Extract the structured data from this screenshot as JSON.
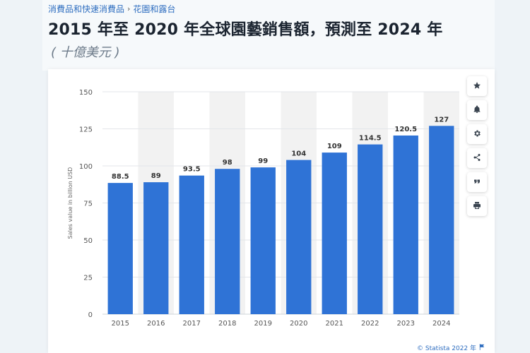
{
  "breadcrumb": [
    "消費品和快速消費品",
    "花園和露台"
  ],
  "breadcrumb_separator": "›",
  "title": "2015 年至 2020 年全球園藝銷售額，預測至 2024 年",
  "subtitle": "( 十億美元 )",
  "toolbar": [
    {
      "name": "star-icon"
    },
    {
      "name": "bell-icon"
    },
    {
      "name": "gear-icon"
    },
    {
      "name": "share-icon"
    },
    {
      "name": "quote-icon"
    },
    {
      "name": "print-icon"
    }
  ],
  "credit": {
    "text": "© Statista 2022 年",
    "flag_icon": "flag-icon"
  },
  "colors": {
    "bar": "#2f73d6",
    "grid": "#e3e6ea",
    "band": "#f2f2f2",
    "axis_text": "#555555",
    "label": "#333333"
  },
  "chart_data": {
    "type": "bar",
    "title": "",
    "xlabel": "",
    "ylabel": "Sales value in billion USD",
    "categories": [
      "2015",
      "2016",
      "2017",
      "2018",
      "2019",
      "2020",
      "2021",
      "2022",
      "2023",
      "2024"
    ],
    "values": [
      88.5,
      89,
      93.5,
      98,
      99,
      104,
      109,
      114.5,
      120.5,
      127
    ],
    "value_labels": [
      "88.5",
      "89",
      "93.5",
      "98",
      "99",
      "104",
      "109",
      "114.5",
      "120.5",
      "127"
    ],
    "ylim": [
      0,
      150
    ],
    "yticks": [
      0,
      25,
      50,
      75,
      100,
      125,
      150
    ],
    "grid": true,
    "legend": "none"
  }
}
